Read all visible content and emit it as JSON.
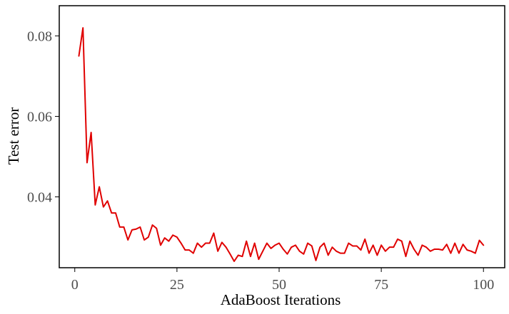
{
  "chart_data": {
    "type": "line",
    "title": "",
    "xlabel": "AdaBoost Iterations",
    "ylabel": "Test error",
    "xlim": [
      -3.8,
      105.2
    ],
    "ylim": [
      0.0224,
      0.0875
    ],
    "xticks": [
      0,
      25,
      50,
      75,
      100
    ],
    "xtick_labels": [
      "0",
      "25",
      "50",
      "75",
      "100"
    ],
    "yticks": [
      0.04,
      0.06,
      0.08
    ],
    "ytick_labels": [
      "0.04",
      "0.06",
      "0.08"
    ],
    "grid": false,
    "legend": "none",
    "line_color": "#e00000",
    "series": [
      {
        "x": [
          1,
          2,
          3,
          4,
          5,
          6,
          7,
          8,
          9,
          10,
          11,
          12,
          13,
          14,
          15,
          16,
          17,
          18,
          19,
          20,
          21,
          22,
          23,
          24,
          25,
          26,
          27,
          28,
          29,
          30,
          31,
          32,
          33,
          34,
          35,
          36,
          37,
          38,
          39,
          40,
          41,
          42,
          43,
          44,
          45,
          46,
          47,
          48,
          49,
          50,
          51,
          52,
          53,
          54,
          55,
          56,
          57,
          58,
          59,
          60,
          61,
          62,
          63,
          64,
          65,
          66,
          67,
          68,
          69,
          70,
          71,
          72,
          73,
          74,
          75,
          76,
          77,
          78,
          79,
          80,
          81,
          82,
          83,
          84,
          85,
          86,
          87,
          88,
          89,
          90,
          91,
          92,
          93,
          94,
          95,
          96,
          97,
          98,
          99,
          100
        ],
        "values": [
          0.075,
          0.082,
          0.0485,
          0.056,
          0.038,
          0.0425,
          0.0375,
          0.039,
          0.036,
          0.036,
          0.0325,
          0.0325,
          0.0293,
          0.0318,
          0.032,
          0.0325,
          0.0293,
          0.03,
          0.033,
          0.0322,
          0.028,
          0.0298,
          0.029,
          0.0305,
          0.03,
          0.0285,
          0.0268,
          0.0268,
          0.026,
          0.0285,
          0.0275,
          0.0285,
          0.0285,
          0.031,
          0.0265,
          0.0287,
          0.0275,
          0.0258,
          0.024,
          0.0255,
          0.0252,
          0.029,
          0.0252,
          0.0285,
          0.0245,
          0.0265,
          0.0285,
          0.0272,
          0.028,
          0.0285,
          0.027,
          0.0258,
          0.0275,
          0.028,
          0.0265,
          0.0258,
          0.0285,
          0.0278,
          0.0242,
          0.0275,
          0.0285,
          0.0255,
          0.0275,
          0.0265,
          0.026,
          0.026,
          0.0285,
          0.0278,
          0.0278,
          0.0268,
          0.0295,
          0.026,
          0.028,
          0.0255,
          0.028,
          0.0265,
          0.0275,
          0.0275,
          0.0295,
          0.029,
          0.0252,
          0.029,
          0.027,
          0.0255,
          0.028,
          0.0275,
          0.0265,
          0.027,
          0.027,
          0.0268,
          0.0282,
          0.026,
          0.0285,
          0.026,
          0.0282,
          0.0268,
          0.0265,
          0.026,
          0.0292,
          0.028
        ]
      }
    ]
  }
}
